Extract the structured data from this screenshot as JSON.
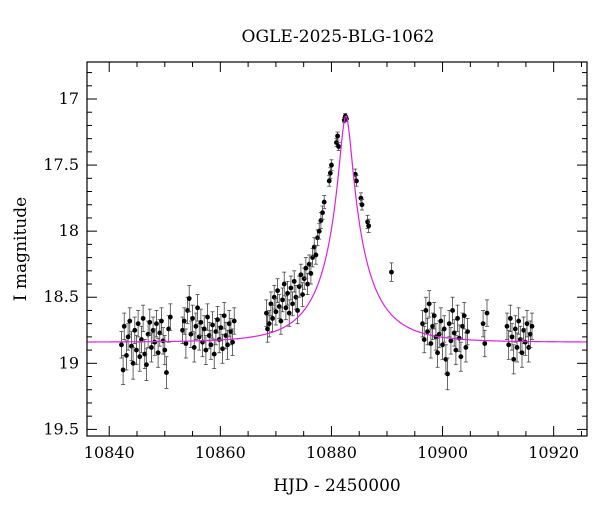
{
  "chart_data": {
    "type": "scatter",
    "title": "OGLE-2025-BLG-1062",
    "xlabel": "HJD - 2450000",
    "ylabel": "I magnitude",
    "xlim": [
      10836,
      10926
    ],
    "ylim": [
      19.55,
      16.72
    ],
    "y_inverted": true,
    "x_ticks": [
      10840,
      10860,
      10880,
      10900,
      10920
    ],
    "y_ticks": [
      17,
      17.5,
      18,
      18.5,
      19,
      19.5
    ],
    "x_tick_labels": [
      "10840",
      "10860",
      "10880",
      "10900",
      "10920"
    ],
    "y_tick_labels": [
      "17",
      "17.5",
      "18",
      "18.5",
      "19",
      "19.5"
    ],
    "legend": "none",
    "grid": false,
    "colors": {
      "points": "#000000",
      "model": "#e020e0",
      "frame": "#000000"
    },
    "model": {
      "name": "",
      "t0": 10882.6,
      "tE": 9.0,
      "u0": 0.12,
      "base_mag": 18.84,
      "peak_mag": 17.13
    },
    "points": [
      {
        "x": 10842.2,
        "y": 18.86,
        "e": 0.1
      },
      {
        "x": 10842.5,
        "y": 19.05,
        "e": 0.11
      },
      {
        "x": 10842.7,
        "y": 18.72,
        "e": 0.1
      },
      {
        "x": 10843.1,
        "y": 18.94,
        "e": 0.11
      },
      {
        "x": 10843.4,
        "y": 18.8,
        "e": 0.1
      },
      {
        "x": 10843.7,
        "y": 18.68,
        "e": 0.1
      },
      {
        "x": 10844.0,
        "y": 18.87,
        "e": 0.11
      },
      {
        "x": 10844.3,
        "y": 19.0,
        "e": 0.12
      },
      {
        "x": 10844.6,
        "y": 18.75,
        "e": 0.1
      },
      {
        "x": 10844.9,
        "y": 18.9,
        "e": 0.11
      },
      {
        "x": 10845.2,
        "y": 18.7,
        "e": 0.1
      },
      {
        "x": 10845.5,
        "y": 18.95,
        "e": 0.11
      },
      {
        "x": 10845.8,
        "y": 18.82,
        "e": 0.1
      },
      {
        "x": 10846.1,
        "y": 18.66,
        "e": 0.1
      },
      {
        "x": 10846.4,
        "y": 18.93,
        "e": 0.11
      },
      {
        "x": 10846.7,
        "y": 19.01,
        "e": 0.12
      },
      {
        "x": 10847.0,
        "y": 18.78,
        "e": 0.1
      },
      {
        "x": 10847.3,
        "y": 18.69,
        "e": 0.1
      },
      {
        "x": 10847.6,
        "y": 18.88,
        "e": 0.11
      },
      {
        "x": 10847.9,
        "y": 18.75,
        "e": 0.1
      },
      {
        "x": 10848.2,
        "y": 18.84,
        "e": 0.1
      },
      {
        "x": 10848.5,
        "y": 18.7,
        "e": 0.1
      },
      {
        "x": 10848.8,
        "y": 18.92,
        "e": 0.11
      },
      {
        "x": 10849.1,
        "y": 18.77,
        "e": 0.1
      },
      {
        "x": 10849.4,
        "y": 18.68,
        "e": 0.1
      },
      {
        "x": 10849.7,
        "y": 18.83,
        "e": 0.1
      },
      {
        "x": 10850.0,
        "y": 18.9,
        "e": 0.11
      },
      {
        "x": 10850.3,
        "y": 19.07,
        "e": 0.12
      },
      {
        "x": 10850.7,
        "y": 18.74,
        "e": 0.1
      },
      {
        "x": 10851.0,
        "y": 18.65,
        "e": 0.1
      },
      {
        "x": 10853.2,
        "y": 18.75,
        "e": 0.1
      },
      {
        "x": 10853.5,
        "y": 18.68,
        "e": 0.1
      },
      {
        "x": 10853.8,
        "y": 18.85,
        "e": 0.11
      },
      {
        "x": 10854.1,
        "y": 18.6,
        "e": 0.1
      },
      {
        "x": 10854.4,
        "y": 18.51,
        "e": 0.1
      },
      {
        "x": 10854.7,
        "y": 18.78,
        "e": 0.1
      },
      {
        "x": 10855.0,
        "y": 18.66,
        "e": 0.1
      },
      {
        "x": 10855.3,
        "y": 18.88,
        "e": 0.11
      },
      {
        "x": 10855.6,
        "y": 18.72,
        "e": 0.1
      },
      {
        "x": 10855.9,
        "y": 18.58,
        "e": 0.1
      },
      {
        "x": 10856.2,
        "y": 18.8,
        "e": 0.1
      },
      {
        "x": 10856.5,
        "y": 18.69,
        "e": 0.1
      },
      {
        "x": 10856.8,
        "y": 18.84,
        "e": 0.11
      },
      {
        "x": 10857.1,
        "y": 18.74,
        "e": 0.1
      },
      {
        "x": 10857.4,
        "y": 18.9,
        "e": 0.11
      },
      {
        "x": 10857.7,
        "y": 18.65,
        "e": 0.1
      },
      {
        "x": 10858.0,
        "y": 18.79,
        "e": 0.1
      },
      {
        "x": 10858.3,
        "y": 18.86,
        "e": 0.11
      },
      {
        "x": 10858.6,
        "y": 18.71,
        "e": 0.1
      },
      {
        "x": 10858.9,
        "y": 18.93,
        "e": 0.11
      },
      {
        "x": 10859.2,
        "y": 18.76,
        "e": 0.1
      },
      {
        "x": 10859.5,
        "y": 18.67,
        "e": 0.1
      },
      {
        "x": 10859.8,
        "y": 18.82,
        "e": 0.1
      },
      {
        "x": 10860.1,
        "y": 18.73,
        "e": 0.1
      },
      {
        "x": 10860.4,
        "y": 18.89,
        "e": 0.11
      },
      {
        "x": 10860.7,
        "y": 18.64,
        "e": 0.1
      },
      {
        "x": 10861.0,
        "y": 18.79,
        "e": 0.1
      },
      {
        "x": 10861.3,
        "y": 18.86,
        "e": 0.11
      },
      {
        "x": 10861.6,
        "y": 18.7,
        "e": 0.1
      },
      {
        "x": 10861.9,
        "y": 18.76,
        "e": 0.1
      },
      {
        "x": 10862.2,
        "y": 18.84,
        "e": 0.1
      },
      {
        "x": 10862.5,
        "y": 18.68,
        "e": 0.1
      },
      {
        "x": 10868.3,
        "y": 18.62,
        "e": 0.1
      },
      {
        "x": 10868.5,
        "y": 18.74,
        "e": 0.1
      },
      {
        "x": 10868.8,
        "y": 18.7,
        "e": 0.1
      },
      {
        "x": 10869.1,
        "y": 18.55,
        "e": 0.09
      },
      {
        "x": 10869.4,
        "y": 18.66,
        "e": 0.1
      },
      {
        "x": 10869.7,
        "y": 18.5,
        "e": 0.09
      },
      {
        "x": 10870.0,
        "y": 18.61,
        "e": 0.1
      },
      {
        "x": 10870.3,
        "y": 18.45,
        "e": 0.09
      },
      {
        "x": 10870.6,
        "y": 18.57,
        "e": 0.09
      },
      {
        "x": 10870.9,
        "y": 18.68,
        "e": 0.1
      },
      {
        "x": 10871.2,
        "y": 18.52,
        "e": 0.09
      },
      {
        "x": 10871.5,
        "y": 18.4,
        "e": 0.09
      },
      {
        "x": 10871.8,
        "y": 18.58,
        "e": 0.09
      },
      {
        "x": 10872.1,
        "y": 18.47,
        "e": 0.09
      },
      {
        "x": 10872.4,
        "y": 18.62,
        "e": 0.1
      },
      {
        "x": 10872.7,
        "y": 18.43,
        "e": 0.09
      },
      {
        "x": 10873.0,
        "y": 18.55,
        "e": 0.09
      },
      {
        "x": 10873.3,
        "y": 18.38,
        "e": 0.08
      },
      {
        "x": 10873.6,
        "y": 18.5,
        "e": 0.09
      },
      {
        "x": 10873.9,
        "y": 18.6,
        "e": 0.1
      },
      {
        "x": 10874.2,
        "y": 18.42,
        "e": 0.08
      },
      {
        "x": 10874.5,
        "y": 18.33,
        "e": 0.08
      },
      {
        "x": 10874.8,
        "y": 18.48,
        "e": 0.09
      },
      {
        "x": 10875.1,
        "y": 18.36,
        "e": 0.08
      },
      {
        "x": 10875.4,
        "y": 18.28,
        "e": 0.08
      },
      {
        "x": 10875.7,
        "y": 18.4,
        "e": 0.08
      },
      {
        "x": 10876.0,
        "y": 18.25,
        "e": 0.07
      },
      {
        "x": 10876.3,
        "y": 18.32,
        "e": 0.08
      },
      {
        "x": 10876.6,
        "y": 18.2,
        "e": 0.07
      },
      {
        "x": 10876.9,
        "y": 18.12,
        "e": 0.07
      },
      {
        "x": 10877.2,
        "y": 18.18,
        "e": 0.07
      },
      {
        "x": 10877.5,
        "y": 18.05,
        "e": 0.06
      },
      {
        "x": 10877.8,
        "y": 18.0,
        "e": 0.06
      },
      {
        "x": 10878.1,
        "y": 17.92,
        "e": 0.06
      },
      {
        "x": 10878.4,
        "y": 17.86,
        "e": 0.05
      },
      {
        "x": 10878.7,
        "y": 17.78,
        "e": 0.05
      },
      {
        "x": 10879.6,
        "y": 17.62,
        "e": 0.04
      },
      {
        "x": 10879.8,
        "y": 17.56,
        "e": 0.04
      },
      {
        "x": 10880.0,
        "y": 17.5,
        "e": 0.04
      },
      {
        "x": 10880.9,
        "y": 17.33,
        "e": 0.03
      },
      {
        "x": 10881.1,
        "y": 17.28,
        "e": 0.03
      },
      {
        "x": 10881.3,
        "y": 17.36,
        "e": 0.03
      },
      {
        "x": 10882.3,
        "y": 17.16,
        "e": 0.02
      },
      {
        "x": 10882.5,
        "y": 17.13,
        "e": 0.02
      },
      {
        "x": 10882.7,
        "y": 17.15,
        "e": 0.02
      },
      {
        "x": 10884.3,
        "y": 17.57,
        "e": 0.04
      },
      {
        "x": 10884.5,
        "y": 17.62,
        "e": 0.04
      },
      {
        "x": 10885.3,
        "y": 17.75,
        "e": 0.04
      },
      {
        "x": 10885.5,
        "y": 17.8,
        "e": 0.04
      },
      {
        "x": 10886.5,
        "y": 17.93,
        "e": 0.05
      },
      {
        "x": 10886.7,
        "y": 17.96,
        "e": 0.05
      },
      {
        "x": 10890.8,
        "y": 18.31,
        "e": 0.07
      },
      {
        "x": 10896.4,
        "y": 18.7,
        "e": 0.1
      },
      {
        "x": 10896.7,
        "y": 18.82,
        "e": 0.1
      },
      {
        "x": 10897.0,
        "y": 18.6,
        "e": 0.1
      },
      {
        "x": 10897.3,
        "y": 18.76,
        "e": 0.1
      },
      {
        "x": 10897.6,
        "y": 18.55,
        "e": 0.1
      },
      {
        "x": 10897.9,
        "y": 18.85,
        "e": 0.11
      },
      {
        "x": 10898.2,
        "y": 18.72,
        "e": 0.1
      },
      {
        "x": 10898.5,
        "y": 18.64,
        "e": 0.1
      },
      {
        "x": 10898.8,
        "y": 18.8,
        "e": 0.1
      },
      {
        "x": 10899.1,
        "y": 18.92,
        "e": 0.11
      },
      {
        "x": 10899.4,
        "y": 18.78,
        "e": 0.1
      },
      {
        "x": 10899.7,
        "y": 18.68,
        "e": 0.1
      },
      {
        "x": 10900.0,
        "y": 18.86,
        "e": 0.11
      },
      {
        "x": 10900.3,
        "y": 18.74,
        "e": 0.1
      },
      {
        "x": 10900.6,
        "y": 18.97,
        "e": 0.11
      },
      {
        "x": 10900.9,
        "y": 19.08,
        "e": 0.12
      },
      {
        "x": 10901.2,
        "y": 18.7,
        "e": 0.1
      },
      {
        "x": 10901.5,
        "y": 18.83,
        "e": 0.1
      },
      {
        "x": 10901.8,
        "y": 18.6,
        "e": 0.1
      },
      {
        "x": 10902.1,
        "y": 18.77,
        "e": 0.1
      },
      {
        "x": 10902.4,
        "y": 18.9,
        "e": 0.11
      },
      {
        "x": 10902.7,
        "y": 18.66,
        "e": 0.1
      },
      {
        "x": 10903.0,
        "y": 18.81,
        "e": 0.1
      },
      {
        "x": 10903.3,
        "y": 18.95,
        "e": 0.11
      },
      {
        "x": 10903.6,
        "y": 18.72,
        "e": 0.1
      },
      {
        "x": 10903.9,
        "y": 18.64,
        "e": 0.1
      },
      {
        "x": 10904.2,
        "y": 18.88,
        "e": 0.11
      },
      {
        "x": 10904.5,
        "y": 18.76,
        "e": 0.1
      },
      {
        "x": 10907.3,
        "y": 18.7,
        "e": 0.1
      },
      {
        "x": 10907.6,
        "y": 18.85,
        "e": 0.1
      },
      {
        "x": 10908.0,
        "y": 18.62,
        "e": 0.1
      },
      {
        "x": 10911.6,
        "y": 18.72,
        "e": 0.1
      },
      {
        "x": 10911.9,
        "y": 18.86,
        "e": 0.11
      },
      {
        "x": 10912.2,
        "y": 18.66,
        "e": 0.1
      },
      {
        "x": 10912.5,
        "y": 18.8,
        "e": 0.1
      },
      {
        "x": 10912.8,
        "y": 18.97,
        "e": 0.11
      },
      {
        "x": 10913.1,
        "y": 18.74,
        "e": 0.1
      },
      {
        "x": 10913.4,
        "y": 18.88,
        "e": 0.11
      },
      {
        "x": 10913.7,
        "y": 18.68,
        "e": 0.1
      },
      {
        "x": 10914.0,
        "y": 18.82,
        "e": 0.1
      },
      {
        "x": 10914.3,
        "y": 18.92,
        "e": 0.11
      },
      {
        "x": 10914.6,
        "y": 18.75,
        "e": 0.1
      },
      {
        "x": 10914.9,
        "y": 18.84,
        "e": 0.1
      },
      {
        "x": 10915.2,
        "y": 18.7,
        "e": 0.1
      },
      {
        "x": 10915.5,
        "y": 18.88,
        "e": 0.11
      },
      {
        "x": 10915.8,
        "y": 18.78,
        "e": 0.1
      },
      {
        "x": 10916.1,
        "y": 18.72,
        "e": 0.1
      }
    ]
  }
}
